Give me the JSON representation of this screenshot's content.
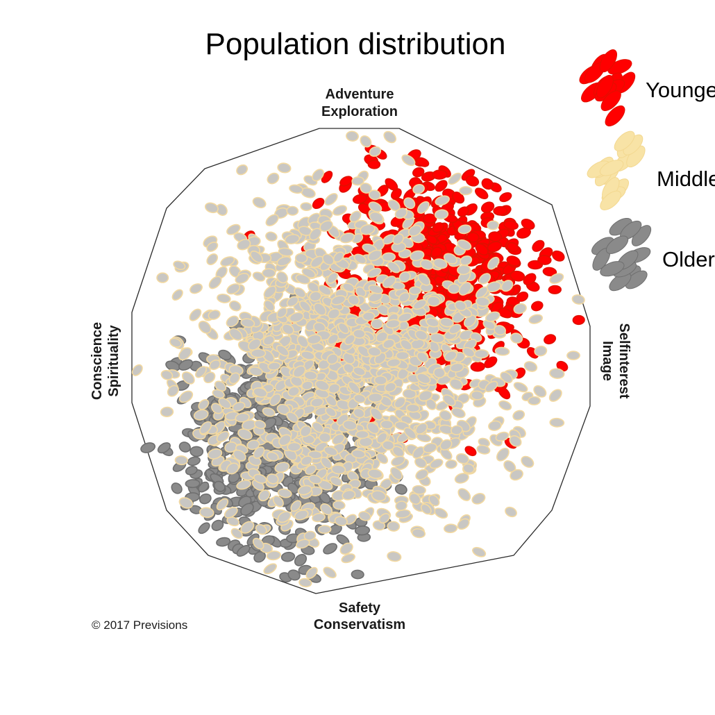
{
  "chart_data": {
    "type": "scatter",
    "title": "Population distribution",
    "axes": {
      "top": [
        "Adventure",
        "Exploration"
      ],
      "bottom": [
        "Safety",
        "Conservatism"
      ],
      "left": [
        "Conscience",
        "Spirituality"
      ],
      "right": [
        "Selfinterest",
        "Image"
      ]
    },
    "series": [
      {
        "name": "Younger",
        "color": "#ff0000",
        "stroke": "#e01000",
        "marker": "ellipse",
        "region": {
          "center": [
            0.32,
            0.38
          ],
          "spread": 0.42
        },
        "count": 520
      },
      {
        "name": "Middle",
        "color": "#c9c7c3",
        "stroke": "#f3d9a0",
        "marker": "ellipse",
        "region": {
          "center": [
            -0.05,
            -0.02
          ],
          "spread": 0.62
        },
        "count": 1300
      },
      {
        "name": "Older",
        "color": "#8a8a8a",
        "stroke": "#6f6f6f",
        "marker": "ellipse",
        "region": {
          "center": [
            -0.38,
            -0.38
          ],
          "spread": 0.42
        },
        "count": 520
      }
    ],
    "legend": {
      "placement": "right"
    },
    "grid": false
  },
  "copyright": "© 2017 Previsions"
}
